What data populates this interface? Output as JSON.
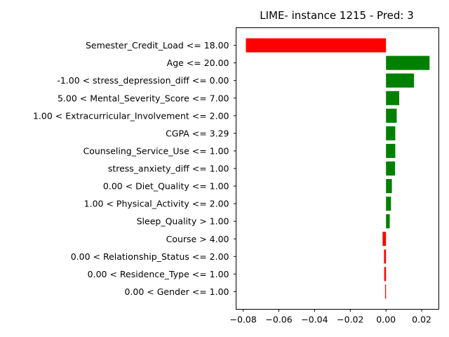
{
  "chart_data": {
    "type": "bar",
    "orientation": "horizontal",
    "title": "LIME- instance 1215 - Pred: 3",
    "xlabel": "",
    "ylabel": "",
    "xlim": [
      -0.084,
      0.0296
    ],
    "xticks": [
      -0.08,
      -0.06,
      -0.04,
      -0.02,
      0.0,
      0.02
    ],
    "xtick_labels": [
      "−0.08",
      "−0.06",
      "−0.04",
      "−0.02",
      "0.00",
      "0.02"
    ],
    "grid": false,
    "colors": {
      "positive": "#008000",
      "negative": "#ff0000"
    },
    "categories": [
      "Semester_Credit_Load <= 18.00",
      "Age <= 20.00",
      "-1.00 < stress_depression_diff <= 0.00",
      "5.00 < Mental_Severity_Score <= 7.00",
      "1.00 < Extracurricular_Involvement <= 2.00",
      "CGPA <= 3.29",
      "Counseling_Service_Use <= 1.00",
      "stress_anxiety_diff <= 1.00",
      "0.00 < Diet_Quality <= 1.00",
      "1.00 < Physical_Activity <= 2.00",
      "Sleep_Quality > 1.00",
      "Course > 4.00",
      "0.00 < Relationship_Status <= 2.00",
      "0.00 < Residence_Type <= 1.00",
      "0.00 < Gender <= 1.00"
    ],
    "values": [
      -0.0785,
      0.0244,
      0.0157,
      0.0074,
      0.006,
      0.0052,
      0.0052,
      0.0051,
      0.0033,
      0.0028,
      0.0021,
      -0.0019,
      -0.0011,
      -0.001,
      -0.0005
    ]
  }
}
